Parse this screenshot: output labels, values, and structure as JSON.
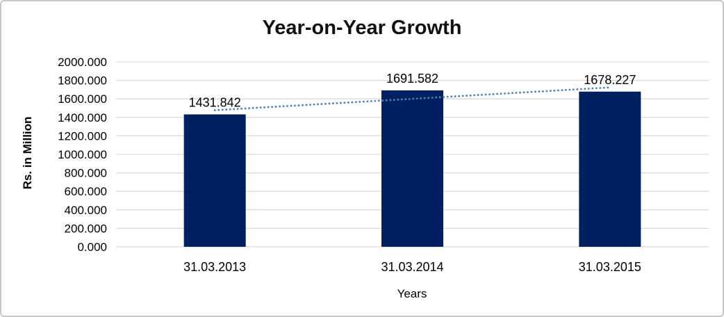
{
  "chart_data": {
    "type": "bar",
    "title": "Year-on-Year Growth",
    "xlabel": "Years",
    "ylabel": "Rs. in Million",
    "categories": [
      "31.03.2013",
      "31.03.2014",
      "31.03.2015"
    ],
    "values": [
      1431.842,
      1691.582,
      1678.227
    ],
    "data_labels": [
      "1431.842",
      "1691.582",
      "1678.227"
    ],
    "ylim": [
      0,
      2000
    ],
    "yticks": [
      0,
      200,
      400,
      600,
      800,
      1000,
      1200,
      1400,
      1600,
      1800,
      2000
    ],
    "ytick_labels": [
      "0.000",
      "200.000",
      "400.000",
      "600.000",
      "800.000",
      "1000.000",
      "1200.000",
      "1400.000",
      "1600.000",
      "1800.000",
      "2000.000"
    ],
    "grid": "horizontal",
    "legend": "none",
    "trendline": {
      "type": "linear",
      "style": "dotted"
    },
    "colors": {
      "bar": "#002060",
      "trendline": "#4f81bd",
      "gridline": "#d9d9d9",
      "text": "#000000",
      "border": "#c6c6c6",
      "background": "#ffffff"
    }
  }
}
